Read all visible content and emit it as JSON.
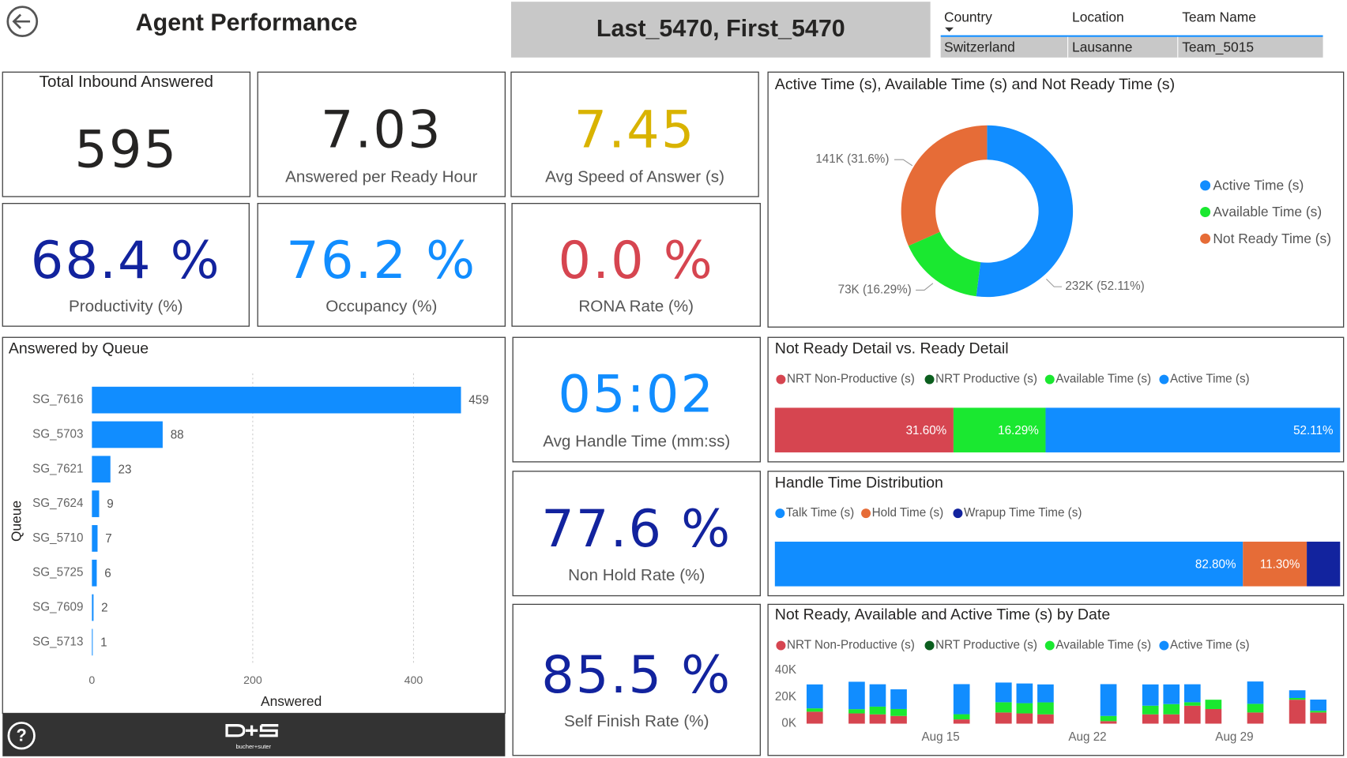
{
  "header": {
    "title": "Agent Performance",
    "agent": "Last_5470, First_5470"
  },
  "filters": {
    "columns": [
      "Country",
      "Location",
      "Team Name"
    ],
    "values": [
      "Switzerland",
      "Lausanne",
      "Team_5015"
    ]
  },
  "kpis": [
    {
      "value": "595",
      "label": "Total Inbound Answered",
      "color": "#252423"
    },
    {
      "value": "7.03",
      "label": "Answered per Ready Hour",
      "color": "#252423"
    },
    {
      "value": "7.45",
      "label": "Avg Speed of Answer (s)",
      "color": "#D9B300"
    },
    {
      "value": "68.4 %",
      "label": "Productivity (%)",
      "color": "#12239E"
    },
    {
      "value": "76.2 %",
      "label": "Occupancy (%)",
      "color": "#118DFF"
    },
    {
      "value": "0.0 %",
      "label": "RONA Rate (%)",
      "color": "#D64550"
    },
    {
      "value": "05:02",
      "label": "Avg Handle Time (mm:ss)",
      "color": "#118DFF"
    },
    {
      "value": "77.6 %",
      "label": "Non Hold Rate (%)",
      "color": "#12239E"
    },
    {
      "value": "85.5 %",
      "label": "Self Finish Rate (%)",
      "color": "#12239E"
    }
  ],
  "chart_data": [
    {
      "type": "pie",
      "donut": true,
      "title": "Active Time (s), Available Time (s) and Not Ready Time (s)",
      "categories": [
        "Active Time (s)",
        "Available Time (s)",
        "Not Ready Time (s)"
      ],
      "values": [
        232000,
        73000,
        141000
      ],
      "value_labels": [
        "232K (52.11%)",
        "73K (16.29%)",
        "141K (31.6%)"
      ],
      "colors": [
        "#118DFF",
        "#1AE830",
        "#E66C37"
      ],
      "legend": "right"
    },
    {
      "type": "bar",
      "orientation": "horizontal",
      "title": "Answered by Queue",
      "categories": [
        "SG_7616",
        "SG_5703",
        "SG_7621",
        "SG_7624",
        "SG_5710",
        "SG_5725",
        "SG_7609",
        "SG_5713"
      ],
      "values": [
        459,
        88,
        23,
        9,
        7,
        6,
        2,
        1
      ],
      "color": "#118DFF",
      "xlim": [
        0,
        500
      ],
      "xticks": [
        0,
        200,
        400
      ],
      "xlabel": "Answered",
      "ylabel": "Queue",
      "grid": true
    },
    {
      "type": "stacked_bar",
      "title": "Not Ready Detail vs. Ready Detail",
      "xlim": [
        0,
        100
      ],
      "legend": "top",
      "series": [
        {
          "name": "NRT Non-Productive (s)",
          "color": "#D64550",
          "values": [
            31.6
          ],
          "value_labels": [
            "31.60%"
          ]
        },
        {
          "name": "NRT Productive (s)",
          "color": "#0B5E1E",
          "values": [
            0
          ]
        },
        {
          "name": "Available Time (s)",
          "color": "#1AE830",
          "values": [
            16.29
          ],
          "value_labels": [
            "16.29%"
          ]
        },
        {
          "name": "Active Time (s)",
          "color": "#118DFF",
          "values": [
            52.11
          ],
          "value_labels": [
            "52.11%"
          ]
        }
      ]
    },
    {
      "type": "stacked_bar",
      "title": "Handle Time Distribution",
      "xlim": [
        0,
        100
      ],
      "legend": "top",
      "series": [
        {
          "name": "Talk Time (s)",
          "color": "#118DFF",
          "values": [
            82.8
          ],
          "value_labels": [
            "82.80%"
          ]
        },
        {
          "name": "Hold Time (s)",
          "color": "#E66C37",
          "values": [
            11.3
          ],
          "value_labels": [
            "11.30%"
          ]
        },
        {
          "name": "Wrapup Time Time (s)",
          "color": "#12239E",
          "values": [
            5.9
          ]
        }
      ]
    },
    {
      "type": "stacked_column",
      "title": "Not Ready, Available and Active Time (s) by Date",
      "legend": "top",
      "x": [
        "Aug 9",
        "Aug 11",
        "Aug 12",
        "Aug 13",
        "Aug 16",
        "Aug 18",
        "Aug 19",
        "Aug 20",
        "Aug 23",
        "Aug 25",
        "Aug 26",
        "Aug 27",
        "Aug 28",
        "Aug 30",
        "Sep 1",
        "Sep 2"
      ],
      "xlim": [
        "Aug 8",
        "Sep 3"
      ],
      "xticks": [
        "Aug 15",
        "Aug 22",
        "Aug 29"
      ],
      "ylim": [
        0,
        40000
      ],
      "yticks": [
        {
          "value": 0,
          "label": "0K"
        },
        {
          "value": 20000,
          "label": "20K"
        },
        {
          "value": 40000,
          "label": "40K"
        }
      ],
      "series": [
        {
          "name": "NRT Non-Productive (s)",
          "color": "#D64550",
          "values": [
            9000,
            7700,
            7000,
            5800,
            3200,
            8400,
            7700,
            7000,
            1900,
            7000,
            7000,
            13500,
            11000,
            8400,
            18000,
            8400
          ]
        },
        {
          "name": "NRT Productive (s)",
          "color": "#0B5E1E",
          "values": [
            0,
            0,
            0,
            0,
            0,
            0,
            0,
            0,
            0,
            0,
            0,
            0,
            0,
            0,
            0,
            0
          ]
        },
        {
          "name": "Available Time (s)",
          "color": "#1AE830",
          "values": [
            2500,
            3200,
            5800,
            5200,
            3900,
            7700,
            7700,
            9000,
            3900,
            6500,
            7700,
            2600,
            7000,
            6500,
            1300,
            1300
          ]
        },
        {
          "name": "Active Time (s)",
          "color": "#118DFF",
          "values": [
            18000,
            20600,
            16800,
            14800,
            22600,
            14800,
            14800,
            13500,
            23900,
            16000,
            14800,
            13500,
            0,
            16800,
            5800,
            8400
          ]
        }
      ]
    }
  ],
  "footer": {
    "logo": "bucher+suter"
  }
}
